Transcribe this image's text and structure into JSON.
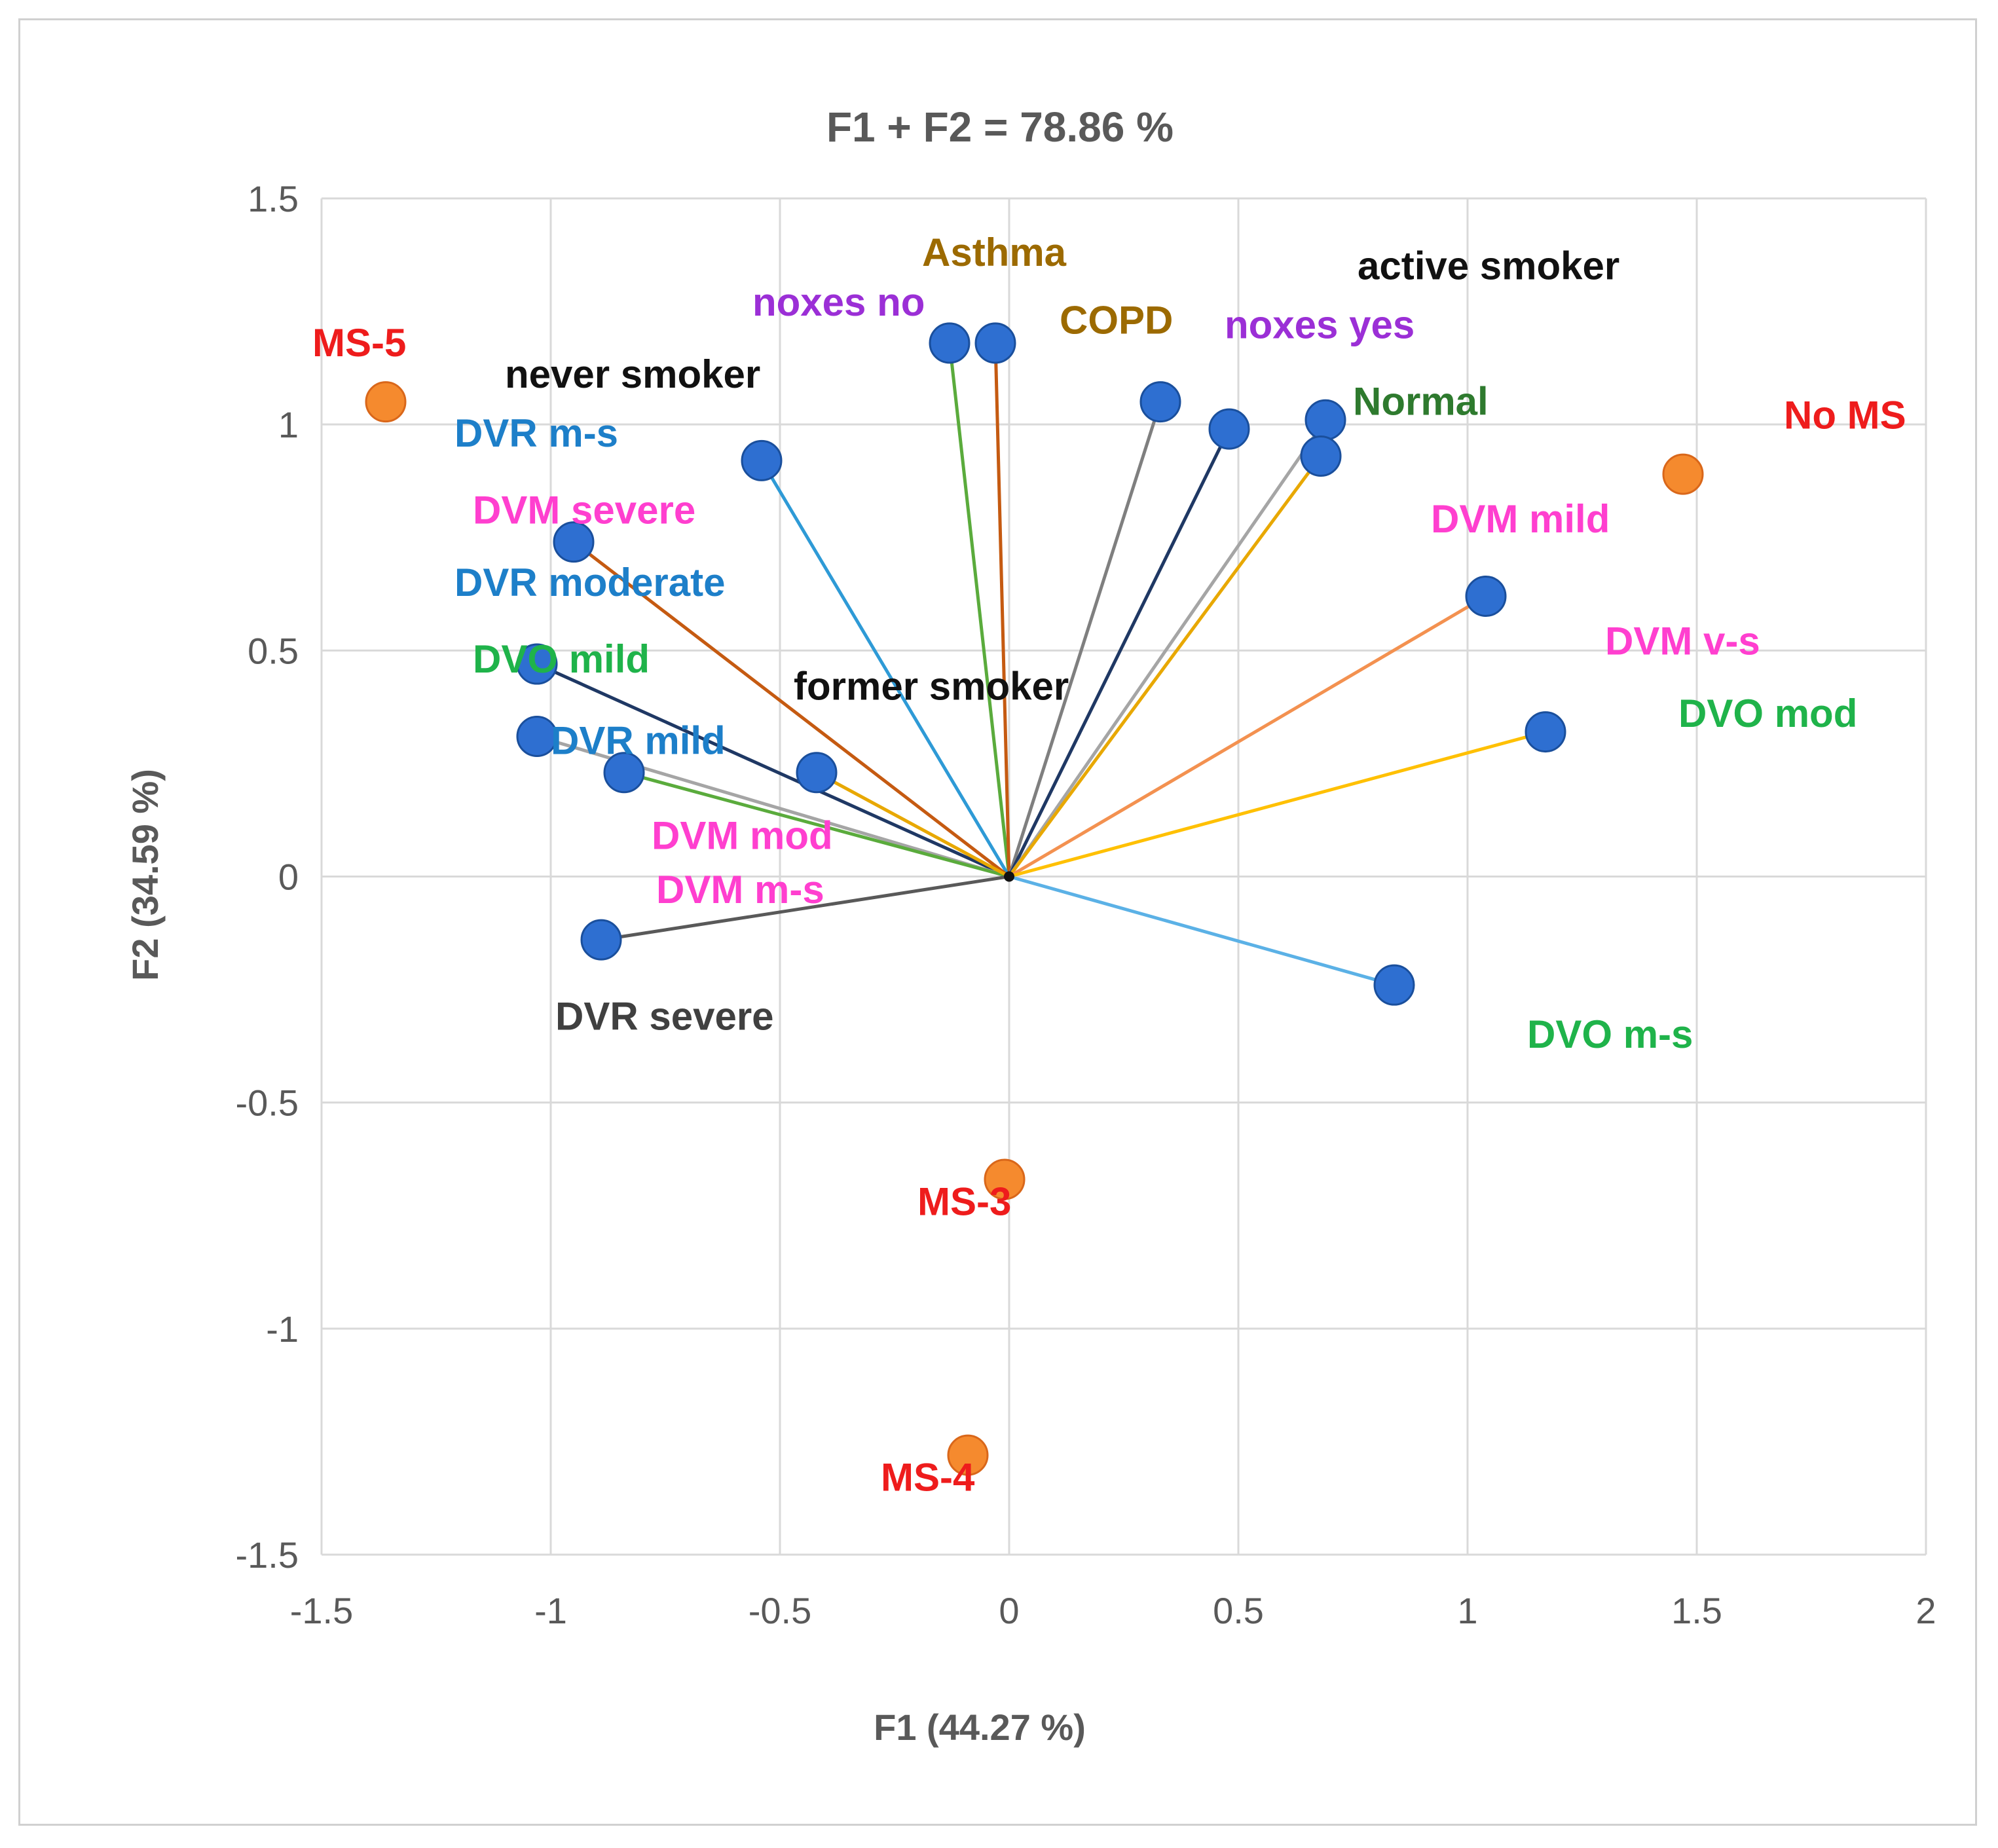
{
  "chart_data": {
    "type": "scatter",
    "title": "F1 + F2 = 78.86 %",
    "xlabel": "F1 (44.27 %)",
    "ylabel": "F2 (34.59 %)",
    "xlim": [
      -1.5,
      2
    ],
    "ylim": [
      -1.5,
      1.5
    ],
    "xticks": [
      -1.5,
      -1,
      -0.5,
      0,
      0.5,
      1,
      1.5,
      2
    ],
    "yticks": [
      -1.5,
      -1,
      -0.5,
      0,
      0.5,
      1,
      1.5
    ],
    "xtick_labels": [
      "-1.5",
      "-1",
      "-0.5",
      "0",
      "0.5",
      "1",
      "1.5",
      "2"
    ],
    "ytick_labels": [
      "-1.5",
      "-1",
      "-0.5",
      "0",
      "0.5",
      "1",
      "1.5"
    ],
    "grid": true,
    "colors": {
      "variable_point": "#2e6fd1",
      "observation_point": "#f58a2e",
      "gridline": "#d9d9d9",
      "axis_text": "#595959"
    },
    "variables": [
      {
        "name": "Asthma",
        "x": -0.13,
        "y": 1.18,
        "line_color": "#5aab3c",
        "label_color": "#9c6a00",
        "label_dx": -0.06,
        "label_dy": 0.2
      },
      {
        "name": "noxes no",
        "x": -0.03,
        "y": 1.18,
        "line_color": "#c55a11",
        "label_color": "#9b2fd6",
        "label_dx": -0.53,
        "label_dy": 0.09
      },
      {
        "name": "COPD",
        "x": 0.33,
        "y": 1.05,
        "line_color": "#7f7f7f",
        "label_color": "#9c6a00",
        "label_dx": -0.22,
        "label_dy": 0.18
      },
      {
        "name": "active smoker",
        "x": 0.48,
        "y": 0.99,
        "line_color": "#1f3864",
        "label_color": "#111111",
        "label_dx": 0.28,
        "label_dy": 0.36
      },
      {
        "name": "noxes yes",
        "x": 0.69,
        "y": 1.01,
        "line_color": "#a5a5a5",
        "label_color": "#9b2fd6",
        "label_dx": -0.22,
        "label_dy": 0.21
      },
      {
        "name": "Normal",
        "x": 0.68,
        "y": 0.93,
        "line_color": "#e8a800",
        "label_color": "#2e7a2e",
        "label_dx": 0.07,
        "label_dy": 0.12
      },
      {
        "name": "never smoker",
        "x": -0.54,
        "y": 0.92,
        "line_color": "#2e9ad6",
        "label_color": "#111111",
        "label_dx": -0.56,
        "label_dy": 0.19
      },
      {
        "name": "DVR  m-s",
        "x": -0.95,
        "y": 0.74,
        "line_color": "#c55a11",
        "label_color": "#1d7fc9",
        "label_dx": -0.26,
        "label_dy": 0.24
      },
      {
        "name": "DVM mild",
        "x": 1.04,
        "y": 0.62,
        "line_color": "#f39150",
        "label_color": "#ff3fcf",
        "label_dx": -0.12,
        "label_dy": 0.17
      },
      {
        "name": "DVM severe",
        "x": -1.03,
        "y": 0.47,
        "line_color": "#1f3864",
        "label_color": "#ff3fcf",
        "label_dx": -0.14,
        "label_dy": 0.34
      },
      {
        "name": "DVR moderate",
        "x": -1.03,
        "y": 0.31,
        "line_color": "#a5a5a5",
        "label_color": "#1d7fc9",
        "label_dx": -0.18,
        "label_dy": 0.34
      },
      {
        "name": "DVO mild",
        "x": -0.84,
        "y": 0.23,
        "line_color": "#5aab3c",
        "label_color": "#1fb34a",
        "label_dx": -0.33,
        "label_dy": 0.25
      },
      {
        "name": "DVR mild",
        "x": -0.42,
        "y": 0.23,
        "line_color": "#e8a800",
        "label_color": "#1d7fc9",
        "label_dx": -0.58,
        "label_dy": 0.07
      },
      {
        "name": "former smoker",
        "x": -0.42,
        "y": 0.23,
        "line_color": "#e8a800",
        "label_color": "#111111",
        "label_dx": -0.05,
        "label_dy": 0.19
      },
      {
        "name": "DVM mod",
        "x": -0.84,
        "y": 0.23,
        "line_color": "#5aab3c",
        "label_color": "#ff3fcf",
        "label_dx": 0.06,
        "label_dy": -0.14
      },
      {
        "name": "DVM v-s",
        "x": 1.17,
        "y": 0.32,
        "line_color": "#ffc000",
        "label_color": "#ff3fcf",
        "label_dx": 0.13,
        "label_dy": 0.2
      },
      {
        "name": "DVO mod",
        "x": 1.17,
        "y": 0.32,
        "line_color": "#ffc000",
        "label_color": "#1fb34a",
        "label_dx": 0.29,
        "label_dy": 0.04
      },
      {
        "name": "DVM m-s",
        "x": -0.89,
        "y": -0.14,
        "line_color": "#595959",
        "label_color": "#ff3fcf",
        "label_dx": 0.12,
        "label_dy": 0.11
      },
      {
        "name": "DVR severe",
        "x": -0.89,
        "y": -0.14,
        "line_color": "#595959",
        "label_color": "#404040",
        "label_dx": -0.1,
        "label_dy": -0.17
      },
      {
        "name": "DVO m-s",
        "x": 0.84,
        "y": -0.24,
        "line_color": "#5bb1e6",
        "label_color": "#1fb34a",
        "label_dx": 0.29,
        "label_dy": -0.11
      }
    ],
    "observations": [
      {
        "name": "MS-5",
        "x": -1.36,
        "y": 1.05,
        "label_color": "#ee1c1c",
        "label_dx": -0.16,
        "label_dy": 0.13
      },
      {
        "name": "No MS",
        "x": 1.47,
        "y": 0.89,
        "label_color": "#ee1c1c",
        "label_dx": 0.22,
        "label_dy": 0.13
      },
      {
        "name": "MS-3",
        "x": -0.01,
        "y": -0.67,
        "label_color": "#ee1c1c",
        "label_dx": -0.19,
        "label_dy": -0.05
      },
      {
        "name": "MS-4",
        "x": -0.09,
        "y": -1.28,
        "label_color": "#ee1c1c",
        "label_dx": -0.19,
        "label_dy": -0.05
      }
    ]
  }
}
